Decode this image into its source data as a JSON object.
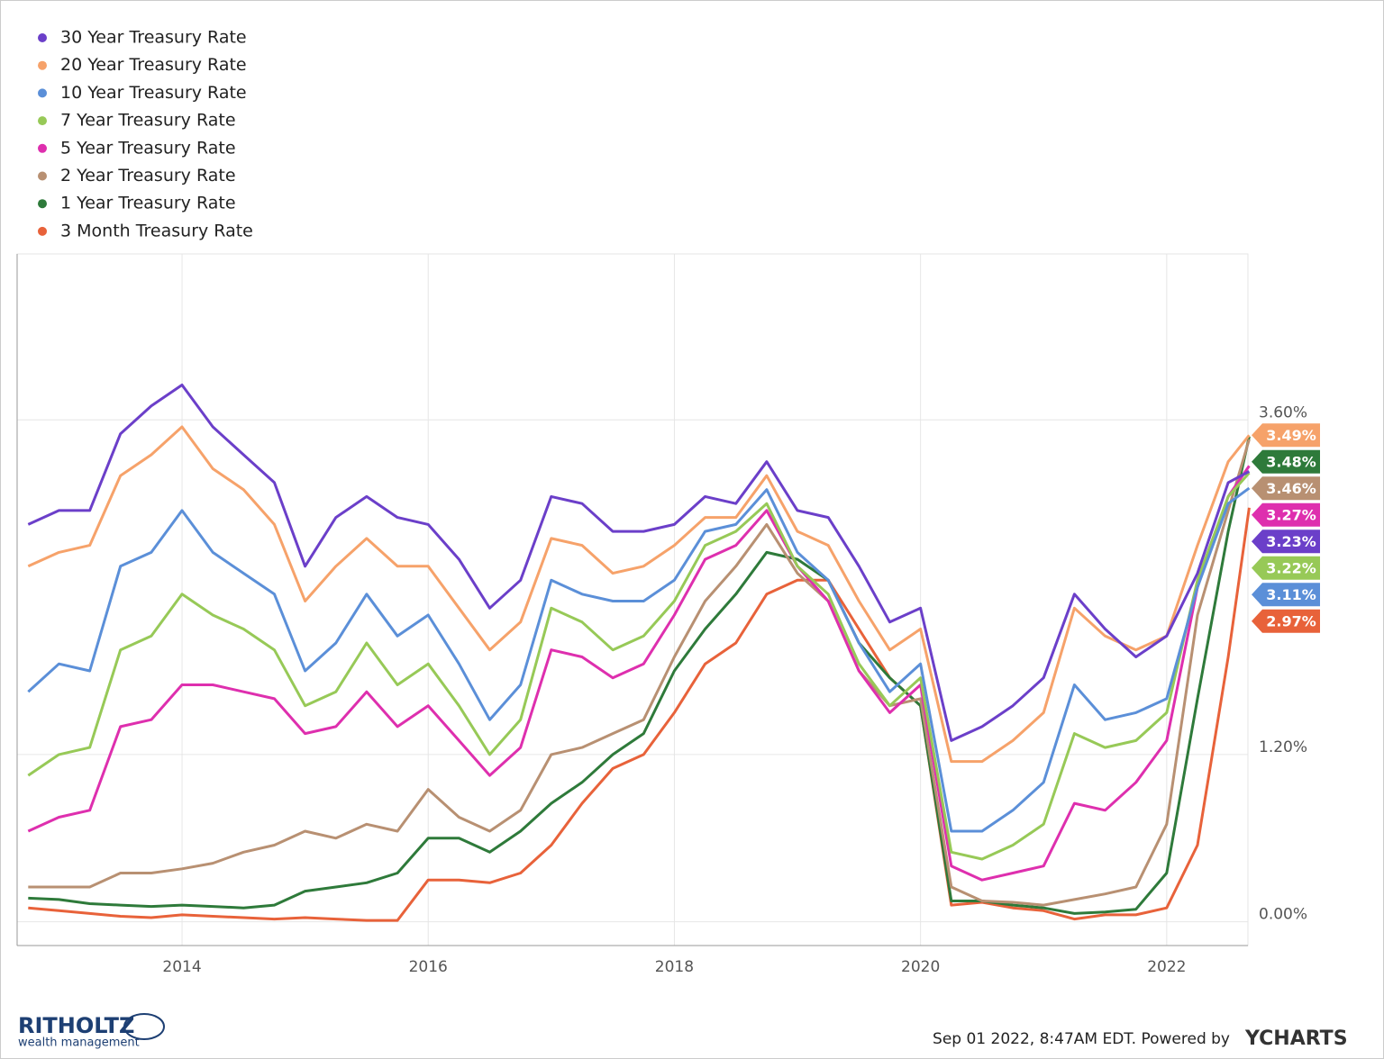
{
  "chart_data": {
    "type": "line",
    "x": [
      2012.75,
      2013.0,
      2013.25,
      2013.5,
      2013.75,
      2014.0,
      2014.25,
      2014.5,
      2014.75,
      2015.0,
      2015.25,
      2015.5,
      2015.75,
      2016.0,
      2016.25,
      2016.5,
      2016.75,
      2017.0,
      2017.25,
      2017.5,
      2017.75,
      2018.0,
      2018.25,
      2018.5,
      2018.75,
      2019.0,
      2019.25,
      2019.5,
      2019.75,
      2020.0,
      2020.25,
      2020.5,
      2020.75,
      2021.0,
      2021.25,
      2021.5,
      2021.75,
      2022.0,
      2022.25,
      2022.5,
      2022.67
    ],
    "xlim": [
      2012.66,
      2022.66
    ],
    "xticks": [
      2014,
      2016,
      2018,
      2020,
      2022
    ],
    "ylim": [
      -0.17,
      4.79
    ],
    "yticks": [
      {
        "value": 0,
        "label": "0.00%"
      },
      {
        "value": 1.2,
        "label": "1.20%"
      },
      {
        "value": 3.6,
        "label": "3.60%"
      }
    ],
    "grid": true,
    "series": [
      {
        "name": "30 Year Treasury Rate",
        "color": "#6b3fc9",
        "end_label": "3.23%",
        "values": [
          2.85,
          2.95,
          2.95,
          3.5,
          3.7,
          3.85,
          3.55,
          3.35,
          3.15,
          2.55,
          2.9,
          3.05,
          2.9,
          2.85,
          2.6,
          2.25,
          2.45,
          3.05,
          3.0,
          2.8,
          2.8,
          2.85,
          3.05,
          3.0,
          3.3,
          2.95,
          2.9,
          2.55,
          2.15,
          2.25,
          1.3,
          1.4,
          1.55,
          1.75,
          2.35,
          2.1,
          1.9,
          2.05,
          2.5,
          3.15,
          3.23
        ]
      },
      {
        "name": "20 Year Treasury Rate",
        "color": "#f6a26a",
        "end_label": "3.49%",
        "values": [
          2.55,
          2.65,
          2.7,
          3.2,
          3.35,
          3.55,
          3.25,
          3.1,
          2.85,
          2.3,
          2.55,
          2.75,
          2.55,
          2.55,
          2.25,
          1.95,
          2.15,
          2.75,
          2.7,
          2.5,
          2.55,
          2.7,
          2.9,
          2.9,
          3.2,
          2.8,
          2.7,
          2.3,
          1.95,
          2.1,
          1.15,
          1.15,
          1.3,
          1.5,
          2.25,
          2.05,
          1.95,
          2.05,
          2.7,
          3.3,
          3.49
        ]
      },
      {
        "name": "10 Year Treasury Rate",
        "color": "#5b8fd8",
        "end_label": "3.11%",
        "values": [
          1.65,
          1.85,
          1.8,
          2.55,
          2.65,
          2.95,
          2.65,
          2.5,
          2.35,
          1.8,
          2.0,
          2.35,
          2.05,
          2.2,
          1.85,
          1.45,
          1.7,
          2.45,
          2.35,
          2.3,
          2.3,
          2.45,
          2.8,
          2.85,
          3.1,
          2.65,
          2.45,
          2.0,
          1.65,
          1.85,
          0.65,
          0.65,
          0.8,
          1.0,
          1.7,
          1.45,
          1.5,
          1.6,
          2.4,
          3.0,
          3.11
        ]
      },
      {
        "name": "7 Year Treasury Rate",
        "color": "#97c957",
        "end_label": "3.22%",
        "values": [
          1.05,
          1.2,
          1.25,
          1.95,
          2.05,
          2.35,
          2.2,
          2.1,
          1.95,
          1.55,
          1.65,
          2.0,
          1.7,
          1.85,
          1.55,
          1.2,
          1.45,
          2.25,
          2.15,
          1.95,
          2.05,
          2.3,
          2.7,
          2.8,
          3.0,
          2.55,
          2.35,
          1.85,
          1.55,
          1.75,
          0.5,
          0.45,
          0.55,
          0.7,
          1.35,
          1.25,
          1.3,
          1.5,
          2.45,
          3.05,
          3.22
        ]
      },
      {
        "name": "5 Year Treasury Rate",
        "color": "#de2fae",
        "end_label": "3.27%",
        "values": [
          0.65,
          0.75,
          0.8,
          1.4,
          1.45,
          1.7,
          1.7,
          1.65,
          1.6,
          1.35,
          1.4,
          1.65,
          1.4,
          1.55,
          1.3,
          1.05,
          1.25,
          1.95,
          1.9,
          1.75,
          1.85,
          2.2,
          2.6,
          2.7,
          2.95,
          2.55,
          2.3,
          1.8,
          1.5,
          1.7,
          0.4,
          0.3,
          0.35,
          0.4,
          0.85,
          0.8,
          1.0,
          1.3,
          2.4,
          3.05,
          3.27
        ]
      },
      {
        "name": "2 Year Treasury Rate",
        "color": "#b89072",
        "end_label": "3.46%",
        "values": [
          0.25,
          0.25,
          0.25,
          0.35,
          0.35,
          0.38,
          0.42,
          0.5,
          0.55,
          0.65,
          0.6,
          0.7,
          0.65,
          0.95,
          0.75,
          0.65,
          0.8,
          1.2,
          1.25,
          1.35,
          1.45,
          1.9,
          2.3,
          2.55,
          2.85,
          2.5,
          2.3,
          1.8,
          1.55,
          1.6,
          0.25,
          0.15,
          0.14,
          0.12,
          0.16,
          0.2,
          0.25,
          0.7,
          2.2,
          2.95,
          3.46
        ]
      },
      {
        "name": "1 Year Treasury Rate",
        "color": "#2e7a3a",
        "end_label": "3.48%",
        "values": [
          0.17,
          0.16,
          0.13,
          0.12,
          0.11,
          0.12,
          0.11,
          0.1,
          0.12,
          0.22,
          0.25,
          0.28,
          0.35,
          0.6,
          0.6,
          0.5,
          0.65,
          0.85,
          1.0,
          1.2,
          1.35,
          1.8,
          2.1,
          2.35,
          2.65,
          2.6,
          2.45,
          2.0,
          1.75,
          1.55,
          0.15,
          0.15,
          0.12,
          0.1,
          0.06,
          0.07,
          0.09,
          0.35,
          1.6,
          2.8,
          3.48
        ]
      },
      {
        "name": "3 Month Treasury Rate",
        "color": "#e8623a",
        "end_label": "2.97%",
        "values": [
          0.1,
          0.08,
          0.06,
          0.04,
          0.03,
          0.05,
          0.04,
          0.03,
          0.02,
          0.03,
          0.02,
          0.01,
          0.01,
          0.3,
          0.3,
          0.28,
          0.35,
          0.55,
          0.85,
          1.1,
          1.2,
          1.5,
          1.85,
          2.0,
          2.35,
          2.45,
          2.45,
          2.1,
          1.75,
          1.55,
          0.12,
          0.14,
          0.1,
          0.08,
          0.02,
          0.05,
          0.05,
          0.1,
          0.55,
          1.9,
          2.97
        ]
      }
    ]
  },
  "footer": {
    "brand": "RITHOLTZ",
    "brand_sub": "wealth management",
    "timestamp": "Sep 01 2022, 8:47AM EDT. Powered by",
    "source": "YCHARTS"
  }
}
